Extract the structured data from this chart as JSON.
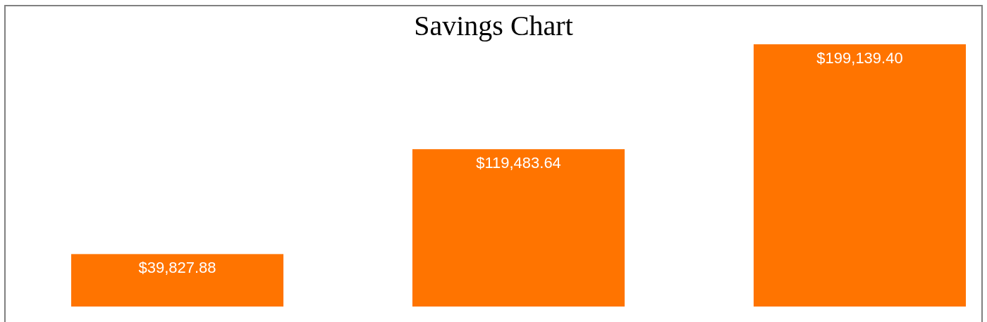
{
  "chart_data": {
    "type": "bar",
    "title": "Savings Chart",
    "categories": [
      null,
      null,
      null
    ],
    "values": [
      39827.88,
      119483.64,
      199139.4
    ],
    "color": "#ff7400",
    "value_labels": [
      "$39,827.88",
      "$119,483.64",
      "$199,139.40"
    ]
  }
}
